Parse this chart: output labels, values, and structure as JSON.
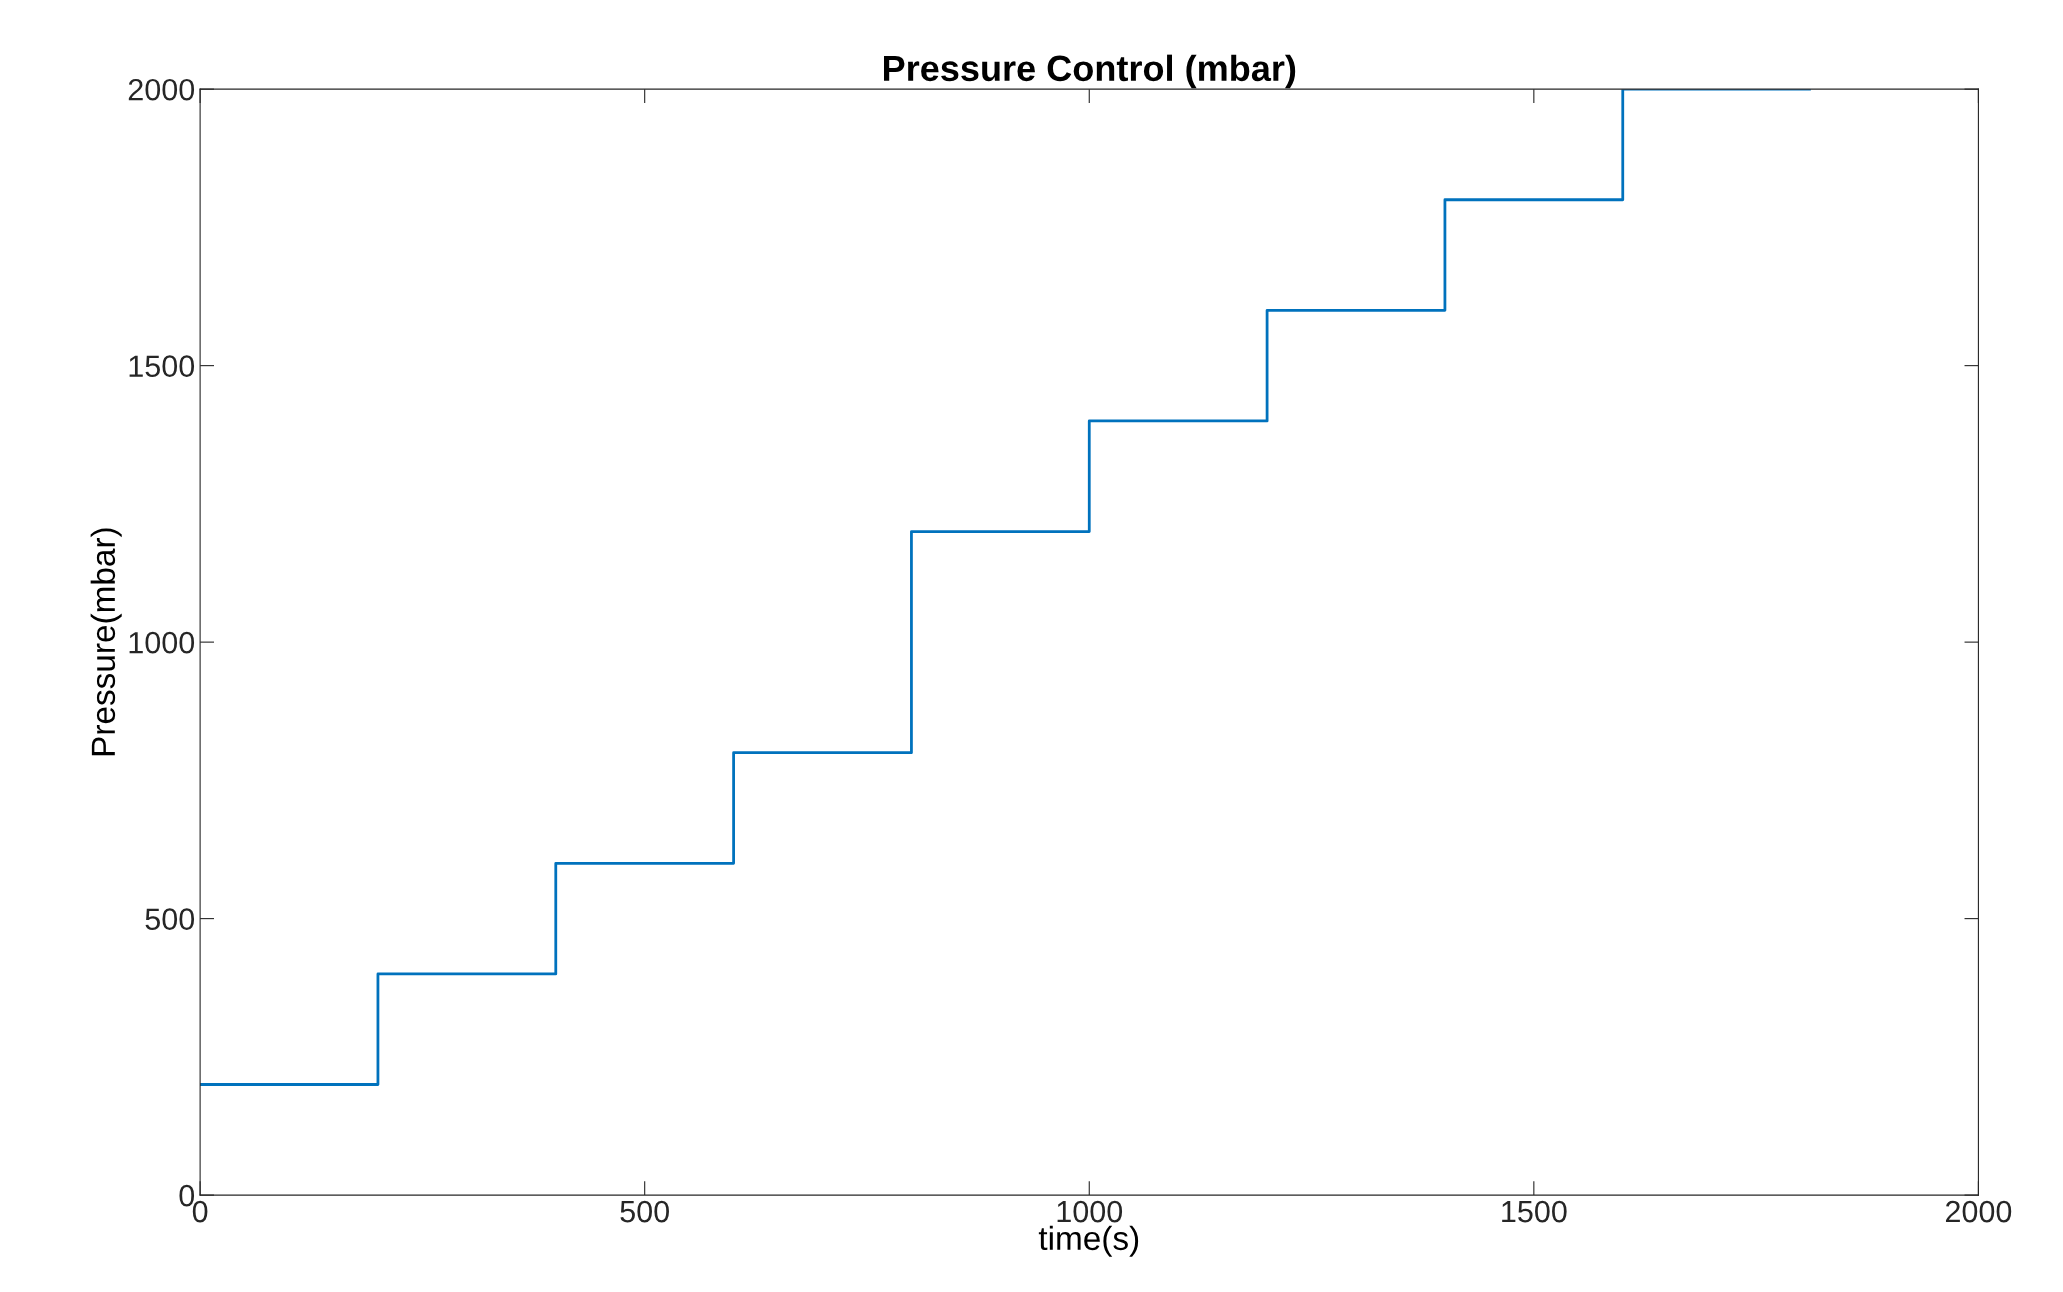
{
  "chart_data": {
    "type": "step",
    "title": "Pressure Control (mbar)",
    "xlabel": "time(s)",
    "ylabel": "Pressure(mbar)",
    "x": [
      0,
      200,
      400,
      600,
      800,
      1000,
      1200,
      1400,
      1600,
      1810
    ],
    "series": [
      {
        "color": "#0072bd",
        "values": [
          200,
          400,
          600,
          800,
          1200,
          1400,
          1600,
          1800,
          2000,
          2000
        ]
      }
    ],
    "xlim": [
      0,
      2000
    ],
    "ylim": [
      0,
      2000
    ],
    "xticks": [
      0,
      500,
      1000,
      1500,
      2000
    ],
    "yticks": [
      0,
      500,
      1000,
      1500,
      2000
    ],
    "grid": false,
    "legend": false
  }
}
